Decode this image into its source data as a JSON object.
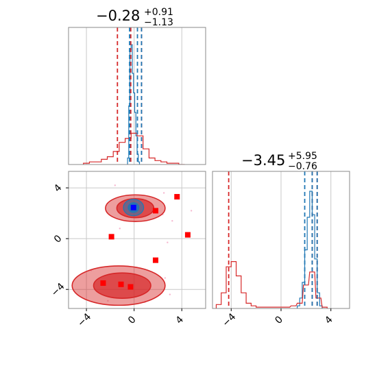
{
  "colors": {
    "blue": "#1f77b4",
    "red": "#d62728",
    "marker_red": "#ff0000",
    "marker_blue": "#0000ff",
    "grid": "#c8c8c8",
    "axes": "#888888"
  },
  "chart_data": [
    {
      "type": "line",
      "panel": "top-left marginal histogram",
      "title": {
        "value": "−0.28",
        "sup": "+0.91",
        "sub": "−1.13"
      },
      "xlim": [
        -5.5,
        6
      ],
      "grid": true,
      "x_ticks": [
        -4,
        0,
        4
      ],
      "quantile_lines_blue": [
        -0.38,
        0.28,
        0.62
      ],
      "quantile_lines_red": [
        -1.4,
        -0.28,
        0.62
      ],
      "series": [
        {
          "color": "blue",
          "x": [
            -0.5,
            -0.4,
            -0.3,
            -0.2,
            -0.1,
            0.0,
            0.1,
            0.2,
            0.3,
            0.4
          ],
          "density": [
            0.05,
            0.45,
            0.88,
            0.92,
            0.7,
            0.55,
            0.4,
            0.22,
            0.08,
            0.02
          ]
        },
        {
          "color": "red",
          "x": [
            -4,
            -3.5,
            -3,
            -2.5,
            -2,
            -1.5,
            -1,
            -0.5,
            0,
            0.5,
            1,
            1.5,
            2,
            2.5,
            3,
            3.5,
            4
          ],
          "density": [
            0.01,
            0.02,
            0.02,
            0.04,
            0.06,
            0.1,
            0.17,
            0.2,
            0.24,
            0.22,
            0.12,
            0.05,
            0.03,
            0.02,
            0.01,
            0.01,
            0.0
          ]
        }
      ]
    },
    {
      "type": "scatter",
      "panel": "bottom-left 2D contour",
      "xlim": [
        -5.5,
        6
      ],
      "ylim": [
        -5.5,
        5.3
      ],
      "grid": true,
      "x_ticks": [
        -4,
        0,
        4
      ],
      "y_ticks": [
        -4,
        0,
        4
      ],
      "red_contours": [
        {
          "cx": 0.1,
          "cy": 2.4,
          "rx": 2.5,
          "ry": 1.05,
          "level": "outer"
        },
        {
          "cx": 0.1,
          "cy": 2.4,
          "rx": 1.55,
          "ry": 0.75,
          "level": "inner"
        },
        {
          "cx": -1.3,
          "cy": -3.7,
          "rx": 3.9,
          "ry": 1.55,
          "level": "outer"
        },
        {
          "cx": -1.0,
          "cy": -3.7,
          "rx": 2.4,
          "ry": 1.0,
          "level": "inner"
        }
      ],
      "blue_contours": [
        {
          "cx": -0.05,
          "cy": 2.45,
          "rx": 0.85,
          "ry": 0.65
        },
        {
          "cx": -0.05,
          "cy": 2.45,
          "rx": 0.45,
          "ry": 0.38
        }
      ],
      "red_markers": [
        {
          "x": 3.6,
          "y": 3.3
        },
        {
          "x": 1.8,
          "y": 2.2
        },
        {
          "x": -1.9,
          "y": 0.15
        },
        {
          "x": 4.5,
          "y": 0.3
        },
        {
          "x": 1.8,
          "y": -1.7
        },
        {
          "x": -2.6,
          "y": -3.5
        },
        {
          "x": -1.1,
          "y": -3.6
        },
        {
          "x": -0.3,
          "y": -3.8
        }
      ],
      "blue_markers": [
        {
          "x": -0.05,
          "y": 2.45
        }
      ],
      "pink_points": [
        {
          "x": 2.5,
          "y": 3.6
        },
        {
          "x": -1.6,
          "y": 4.2
        },
        {
          "x": 2.4,
          "y": 1.9
        },
        {
          "x": 3.2,
          "y": 1.4
        },
        {
          "x": -1.2,
          "y": 0.8
        },
        {
          "x": 2.8,
          "y": -0.3
        },
        {
          "x": -3.6,
          "y": -2.5
        },
        {
          "x": 2.6,
          "y": -3.1
        },
        {
          "x": 3.0,
          "y": -4.4
        },
        {
          "x": -2.2,
          "y": -4.9
        },
        {
          "x": 0.9,
          "y": -5.0
        },
        {
          "x": 4.8,
          "y": 2.2
        }
      ]
    },
    {
      "type": "line",
      "panel": "bottom-right marginal histogram",
      "title": {
        "value": "−3.45",
        "sup": "+5.95",
        "sub": "−0.76"
      },
      "xlim": [
        -5.5,
        5.5
      ],
      "grid": true,
      "x_ticks": [
        -4,
        0,
        4
      ],
      "quantile_lines_blue": [
        1.9,
        2.5,
        2.9
      ],
      "quantile_lines_red": [
        -4.2,
        2.5,
        2.9
      ],
      "series": [
        {
          "color": "blue",
          "x": [
            1.4,
            1.6,
            1.8,
            2.0,
            2.2,
            2.4,
            2.6,
            2.8,
            3.0,
            3.2
          ],
          "density": [
            0.02,
            0.08,
            0.2,
            0.45,
            0.7,
            0.9,
            0.72,
            0.38,
            0.12,
            0.02
          ]
        },
        {
          "color": "red",
          "x": [
            -5,
            -4.6,
            -4.2,
            -3.8,
            -3.4,
            -3.0,
            -2.6,
            -2.2,
            -1.8,
            0.5,
            1.0,
            1.5,
            2.0,
            2.5,
            3.0,
            3.5
          ],
          "density": [
            0.03,
            0.12,
            0.32,
            0.36,
            0.25,
            0.12,
            0.04,
            0.02,
            0.01,
            0.01,
            0.02,
            0.04,
            0.18,
            0.28,
            0.08,
            0.01
          ]
        }
      ]
    }
  ]
}
